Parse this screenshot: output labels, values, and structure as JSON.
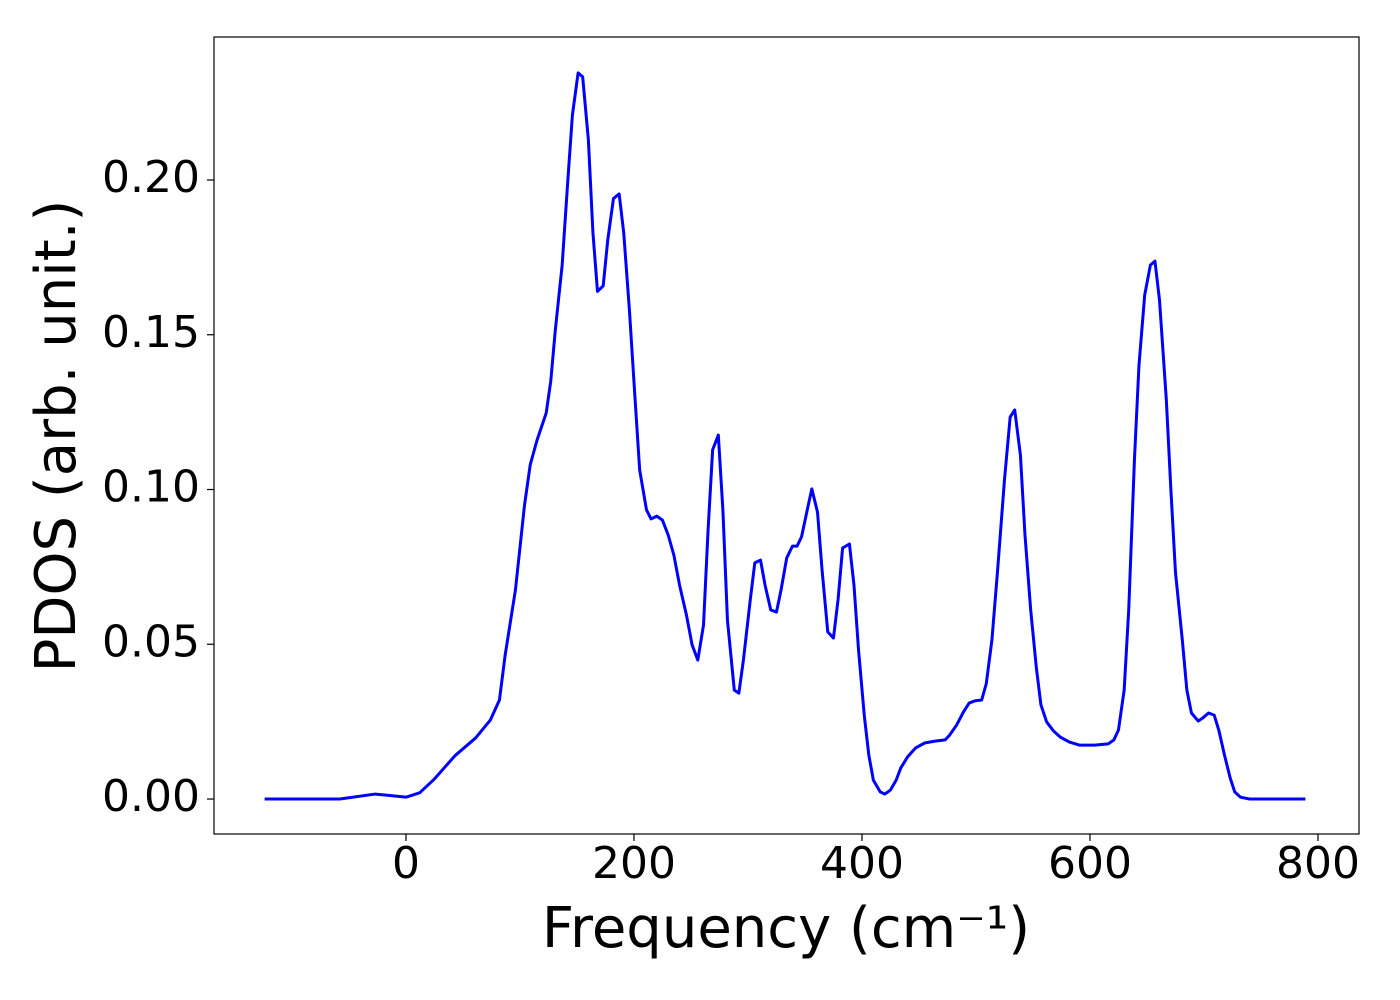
{
  "chart_data": {
    "type": "line",
    "xlabel": "Frequency (cm⁻¹)",
    "ylabel": "PDOS (arb. unit.)",
    "xlim": [
      -168.4,
      836
    ],
    "ylim": [
      -0.0113,
      0.2462
    ],
    "xticks": [
      0,
      200,
      400,
      600,
      800
    ],
    "yticks": [
      {
        "value": 0,
        "label": "0.00"
      },
      {
        "value": 0.05,
        "label": "0.05"
      },
      {
        "value": 0.1,
        "label": "0.10"
      },
      {
        "value": 0.15,
        "label": "0.15"
      },
      {
        "value": 0.2,
        "label": "0.20"
      }
    ],
    "x": [
      -124,
      -58,
      -27,
      0,
      12,
      25,
      43,
      61,
      74,
      82,
      87,
      96,
      104,
      109,
      115,
      123,
      127,
      131,
      137,
      142,
      146,
      151,
      155,
      160,
      164,
      168,
      173,
      177,
      182,
      187,
      191,
      196,
      201,
      205,
      211,
      215,
      220,
      225,
      230,
      235,
      240,
      246,
      251,
      256,
      261,
      265,
      269,
      274,
      278,
      282,
      288,
      292,
      296,
      302,
      306,
      311,
      315,
      320,
      325,
      329,
      334,
      339,
      343,
      347,
      352,
      356,
      361,
      365,
      370,
      375,
      379,
      383,
      389,
      393,
      397,
      402,
      406,
      410,
      416,
      420,
      425,
      430,
      434,
      440,
      447,
      455,
      464,
      473,
      477,
      483,
      489,
      494,
      499,
      505,
      509,
      514,
      519,
      525,
      530,
      534,
      539,
      543,
      548,
      553,
      557,
      562,
      568,
      574,
      582,
      591,
      604,
      616,
      621,
      625,
      630,
      634,
      639,
      643,
      648,
      653,
      657,
      661,
      667,
      671,
      675,
      681,
      685,
      689,
      695,
      699,
      704,
      709,
      713,
      718,
      723,
      727,
      732,
      740,
      789
    ],
    "series": [
      {
        "color": "#0000ff",
        "values": [
          0,
          0,
          0.0016,
          0.0006,
          0.002,
          0.0065,
          0.014,
          0.0197,
          0.0255,
          0.032,
          0.0465,
          0.0675,
          0.095,
          0.108,
          0.116,
          0.1247,
          0.135,
          0.1515,
          0.1725,
          0.2,
          0.221,
          0.2346,
          0.2333,
          0.213,
          0.183,
          0.164,
          0.1658,
          0.1806,
          0.194,
          0.1955,
          0.183,
          0.158,
          0.129,
          0.1063,
          0.0934,
          0.0905,
          0.0914,
          0.0901,
          0.0853,
          0.0788,
          0.0691,
          0.0595,
          0.0498,
          0.0449,
          0.0562,
          0.0869,
          0.1128,
          0.1176,
          0.0934,
          0.0578,
          0.0352,
          0.0342,
          0.0449,
          0.0643,
          0.0763,
          0.0772,
          0.0691,
          0.0611,
          0.0604,
          0.0675,
          0.0779,
          0.0817,
          0.0817,
          0.0847,
          0.0934,
          0.1002,
          0.0927,
          0.074,
          0.054,
          0.052,
          0.0643,
          0.0811,
          0.0824,
          0.0691,
          0.0481,
          0.0271,
          0.0142,
          0.0061,
          0.0023,
          0.0016,
          0.0029,
          0.0061,
          0.01,
          0.0136,
          0.0165,
          0.0181,
          0.0187,
          0.0191,
          0.0207,
          0.0239,
          0.0281,
          0.031,
          0.0317,
          0.032,
          0.0372,
          0.0514,
          0.074,
          0.1031,
          0.1234,
          0.1257,
          0.1111,
          0.0853,
          0.0611,
          0.0423,
          0.0304,
          0.0249,
          0.022,
          0.02,
          0.0184,
          0.0174,
          0.0174,
          0.0178,
          0.0191,
          0.0223,
          0.0352,
          0.0611,
          0.1095,
          0.1402,
          0.1628,
          0.1725,
          0.1738,
          0.1612,
          0.1289,
          0.0998,
          0.0733,
          0.0514,
          0.0352,
          0.0278,
          0.0252,
          0.0262,
          0.0278,
          0.0271,
          0.0223,
          0.0142,
          0.0068,
          0.0023,
          0.0006,
          0,
          0
        ]
      }
    ]
  }
}
